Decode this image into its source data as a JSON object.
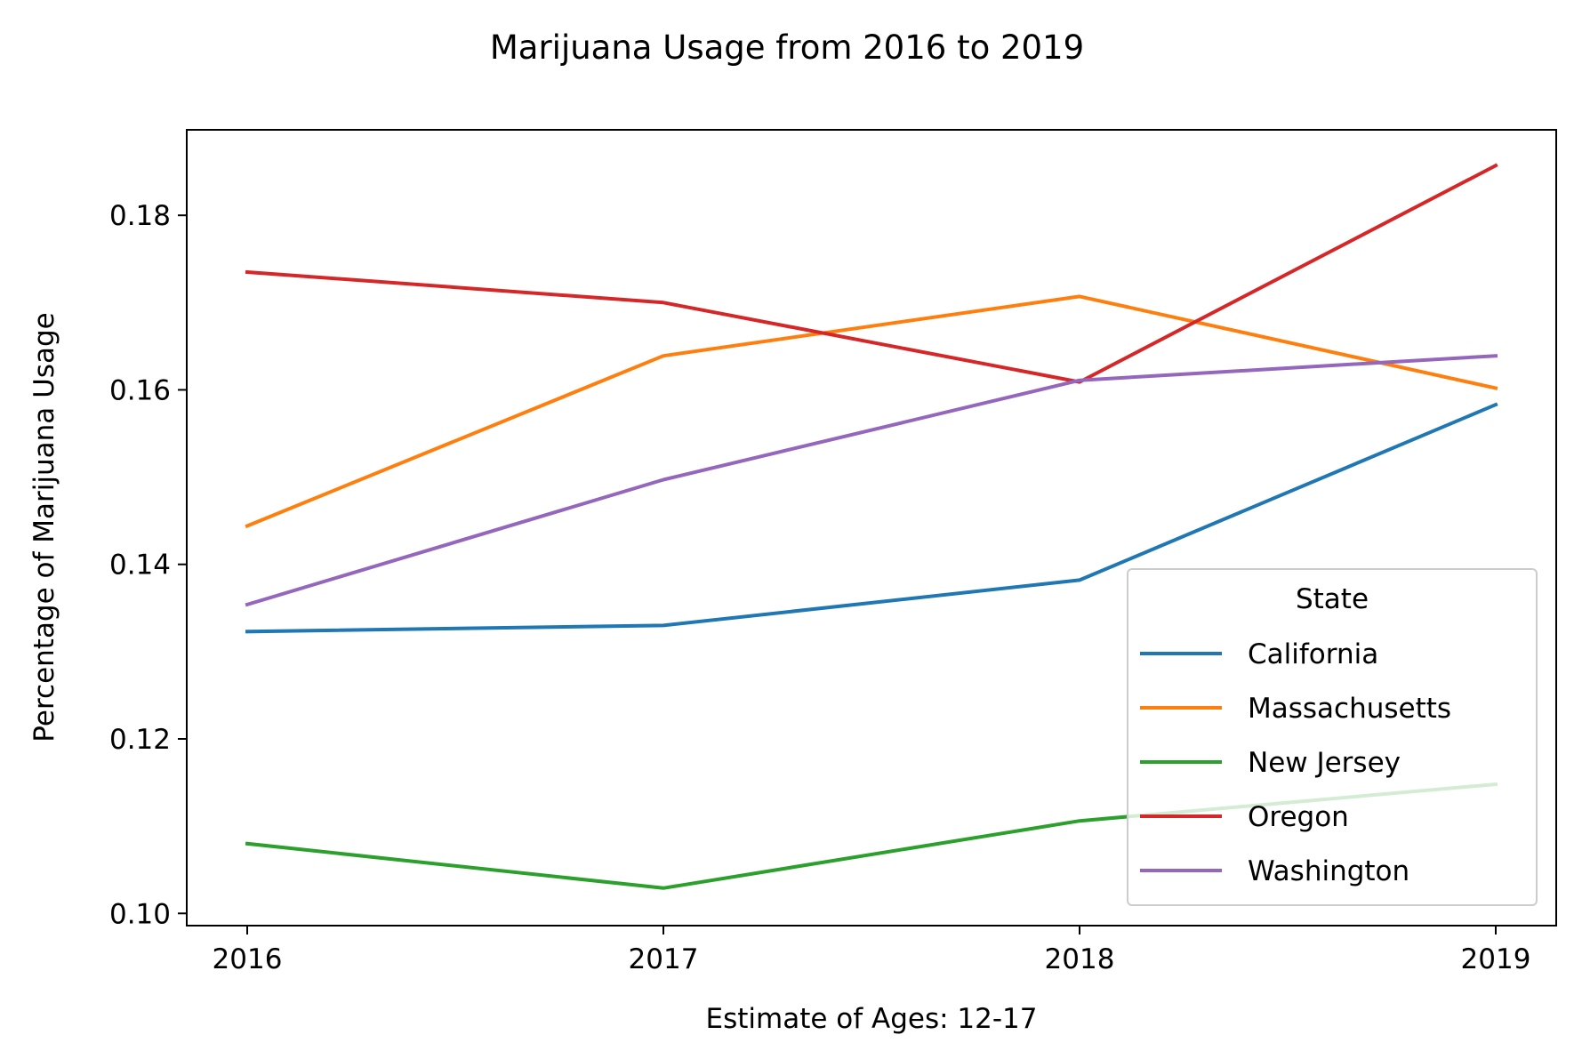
{
  "chart_data": {
    "type": "line",
    "title": "Marijuana Usage from 2016 to 2019",
    "xlabel": "Estimate of Ages: 12-17",
    "ylabel": "Percentage of Marijuana Usage",
    "x": [
      "2016",
      "2017",
      "2018",
      "2019"
    ],
    "yticks": [
      "0.10",
      "0.12",
      "0.14",
      "0.16",
      "0.18"
    ],
    "ylim": [
      0.0986,
      0.1898
    ],
    "grid": false,
    "legend": {
      "title": "State",
      "position": "lower-right"
    },
    "series": [
      {
        "name": "California",
        "color": "#1f77b4",
        "values": [
          0.1323,
          0.133,
          0.1382,
          0.1583
        ]
      },
      {
        "name": "Massachusetts",
        "color": "#ff7f0e",
        "values": [
          0.1444,
          0.1639,
          0.1707,
          0.1602
        ]
      },
      {
        "name": "New Jersey",
        "color": "#2ca02c",
        "values": [
          0.108,
          0.1029,
          0.1106,
          0.1148
        ]
      },
      {
        "name": "Oregon",
        "color": "#d62728",
        "values": [
          0.1735,
          0.17,
          0.1609,
          0.1857
        ]
      },
      {
        "name": "Washington",
        "color": "#9467bd",
        "values": [
          0.1354,
          0.1497,
          0.1611,
          0.1639
        ]
      }
    ]
  }
}
